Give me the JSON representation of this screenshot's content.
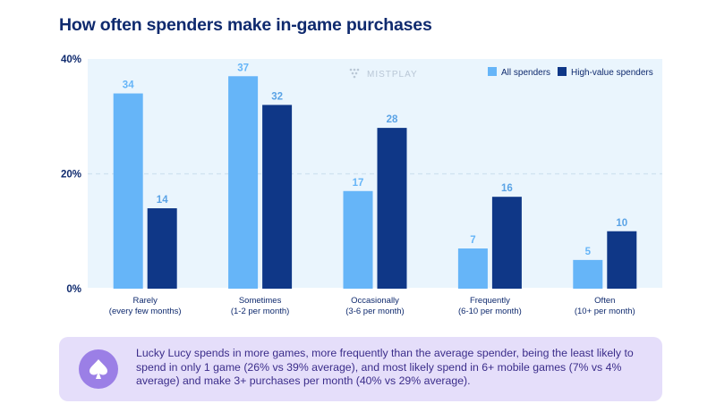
{
  "title": "How often spenders make in-game purchases",
  "watermark": "MISTPLAY",
  "chart_data": {
    "type": "bar",
    "categories": [
      [
        "Rarely",
        "(every few months)"
      ],
      [
        "Sometimes",
        "(1-2 per month)"
      ],
      [
        "Occasionally",
        "(3-6 per month)"
      ],
      [
        "Frequently",
        "(6-10 per month)"
      ],
      [
        "Often",
        "(10+ per month)"
      ]
    ],
    "series": [
      {
        "name": "All spenders",
        "values": [
          34,
          37,
          17,
          7,
          5
        ],
        "color": "#66b5f8"
      },
      {
        "name": "High-value spenders",
        "values": [
          14,
          32,
          28,
          16,
          10
        ],
        "color": "#0f3787"
      }
    ],
    "yticks": [
      "0%",
      "20%",
      "40%"
    ],
    "ytick_values": [
      0,
      20,
      40
    ],
    "ylim": [
      0,
      40
    ],
    "grid": true,
    "legend_position": "top-right",
    "background": "#eaf5fd",
    "label_colors": {
      "All spenders": "#66b5f8",
      "High-value spenders": "#5aa3e6"
    }
  },
  "callout": {
    "text": "Lucky Lucy spends in more games, more frequently than the average spender, being the least likely to spend in only 1 game (26% vs 39% average), and most likely spend in 6+ mobile games (7% vs 4% average) and make 3+ purchases per month (40% vs 29% average).",
    "icon": "spade-icon",
    "background": "#e5defa",
    "icon_color": "#9b7fe6"
  }
}
